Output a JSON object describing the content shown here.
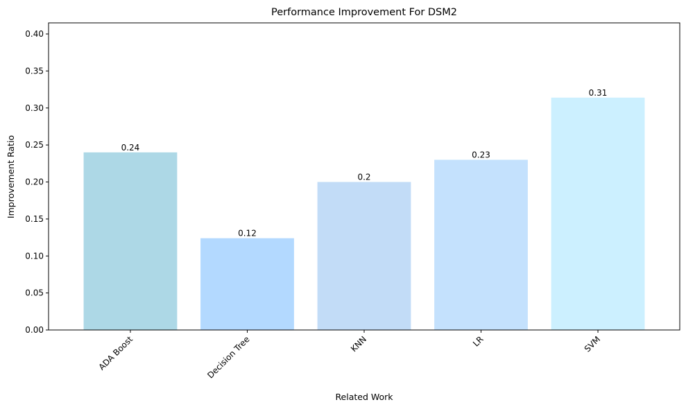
{
  "chart_data": {
    "type": "bar",
    "title": "Performance Improvement For DSM2",
    "xlabel": "Related Work",
    "ylabel": "Improvement Ratio",
    "categories": [
      "ADA Boost",
      "Decision Tree",
      "KNN",
      "LR",
      "SVM"
    ],
    "values": [
      0.24,
      0.124,
      0.2,
      0.23,
      0.314
    ],
    "data_labels": [
      "0.24",
      "0.12",
      "0.2",
      "0.23",
      "0.31"
    ],
    "bar_colors": [
      "#add8e6",
      "#b3d9ff",
      "#c2dcf7",
      "#c4e1fd",
      "#ccf0ff"
    ],
    "ylim": [
      0,
      0.415
    ],
    "yticks": [
      0.0,
      0.05,
      0.1,
      0.15,
      0.2,
      0.25,
      0.3,
      0.35,
      0.4
    ],
    "ytick_labels": [
      "0.00",
      "0.05",
      "0.10",
      "0.15",
      "0.20",
      "0.25",
      "0.30",
      "0.35",
      "0.40"
    ],
    "xtick_rotation_deg": 45,
    "grid": false,
    "legend": false
  }
}
